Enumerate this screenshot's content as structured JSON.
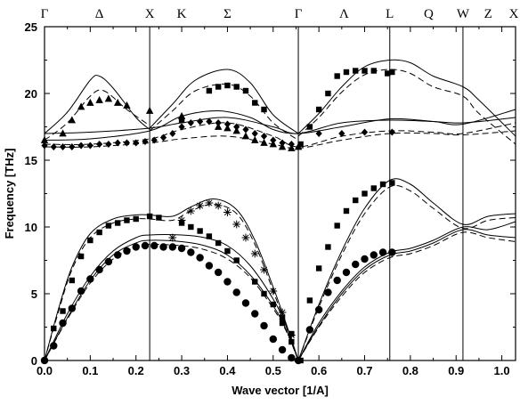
{
  "chart_data": {
    "type": "line",
    "title": "",
    "xlabel": "Wave vector [1/A]",
    "ylabel": "Frequency [THz]",
    "xlim": [
      0,
      1.03
    ],
    "ylim": [
      0,
      25
    ],
    "x_ticks": [
      0,
      0.1,
      0.2,
      0.3,
      0.4,
      0.5,
      0.6,
      0.7,
      0.8,
      0.9,
      1.0
    ],
    "x_tick_labels": [
      "0.0",
      "0.1",
      "0.2",
      "0.3",
      "0.4",
      "0.5",
      "0.6",
      "0.7",
      "0.8",
      "0.9",
      "1.0"
    ],
    "y_ticks": [
      0,
      5,
      10,
      15,
      20,
      25
    ],
    "y_tick_labels": [
      "0",
      "5",
      "10",
      "15",
      "20",
      "25"
    ],
    "grid": false,
    "symmetry_lines": [
      0.23,
      0.555,
      0.755,
      0.915
    ],
    "symmetry_labels": [
      {
        "x": 0.0,
        "label": "Γ"
      },
      {
        "x": 0.12,
        "label": "Δ"
      },
      {
        "x": 0.23,
        "label": "X"
      },
      {
        "x": 0.3,
        "label": "K"
      },
      {
        "x": 0.4,
        "label": "Σ"
      },
      {
        "x": 0.555,
        "label": "Γ"
      },
      {
        "x": 0.655,
        "label": "Λ"
      },
      {
        "x": 0.755,
        "label": "L"
      },
      {
        "x": 0.84,
        "label": "Q"
      },
      {
        "x": 0.915,
        "label": "W"
      },
      {
        "x": 0.97,
        "label": "Z"
      },
      {
        "x": 1.03,
        "label": "X"
      }
    ],
    "series": [
      {
        "style": "solid",
        "x": [
          0,
          0.05,
          0.1,
          0.12,
          0.15,
          0.2,
          0.23
        ],
        "y": [
          17,
          18.6,
          21,
          21.3,
          20.4,
          18.2,
          17.3
        ]
      },
      {
        "style": "dashed",
        "x": [
          0,
          0.05,
          0.1,
          0.13,
          0.18,
          0.23
        ],
        "y": [
          16.5,
          17.8,
          19.8,
          20.2,
          18.8,
          17.6
        ]
      },
      {
        "style": "solid",
        "x": [
          0,
          0.1,
          0.23,
          0.3,
          0.4,
          0.5,
          0.555,
          0.65,
          0.755,
          0.85,
          0.915,
          1.03
        ],
        "y": [
          17,
          17.1,
          17.4,
          17.8,
          18.2,
          17.5,
          17,
          17.8,
          18,
          17.9,
          17.8,
          18.2
        ]
      },
      {
        "style": "solid",
        "x": [
          0,
          0.1,
          0.23,
          0.3,
          0.38,
          0.45,
          0.5,
          0.555,
          0.65,
          0.755,
          0.85,
          0.915,
          1.03
        ],
        "y": [
          16.5,
          16.6,
          17.2,
          18.3,
          18.7,
          18.2,
          17.3,
          17,
          17.5,
          18.1,
          17.9,
          17.7,
          18.8
        ]
      },
      {
        "style": "dashed",
        "x": [
          0,
          0.1,
          0.23,
          0.3,
          0.4,
          0.5,
          0.555,
          0.65,
          0.755,
          0.85,
          0.915,
          1.03
        ],
        "y": [
          16.2,
          16.2,
          16.6,
          17.3,
          17.8,
          16.8,
          16,
          16.8,
          17.2,
          17.1,
          17,
          17.8
        ]
      },
      {
        "style": "dashed",
        "x": [
          0,
          0.1,
          0.23,
          0.3,
          0.4,
          0.5,
          0.555,
          0.65,
          0.755,
          0.85,
          0.915,
          1.03
        ],
        "y": [
          16,
          16,
          16.3,
          16.6,
          16.8,
          16.2,
          15.9,
          16.5,
          17,
          17,
          16.9,
          17.2
        ]
      },
      {
        "style": "solid",
        "x": [
          0.23,
          0.28,
          0.33,
          0.4,
          0.45,
          0.5,
          0.555
        ],
        "y": [
          17.4,
          19.2,
          21,
          21.8,
          20.8,
          18.4,
          17
        ]
      },
      {
        "style": "dashed",
        "x": [
          0.23,
          0.28,
          0.33,
          0.4,
          0.45,
          0.5,
          0.555
        ],
        "y": [
          17.2,
          18.7,
          20.2,
          20.7,
          19.8,
          17.8,
          16.5
        ]
      },
      {
        "style": "solid",
        "x": [
          0.555,
          0.6,
          0.65,
          0.7,
          0.755,
          0.8,
          0.85,
          0.915,
          0.95,
          1.03
        ],
        "y": [
          17,
          18.5,
          20.5,
          22,
          22.5,
          22.3,
          21.3,
          20.5,
          19.5,
          16.8
        ]
      },
      {
        "style": "dashed",
        "x": [
          0.555,
          0.6,
          0.65,
          0.7,
          0.755,
          0.8,
          0.85,
          0.915,
          0.95,
          1.03
        ],
        "y": [
          16.8,
          18.2,
          20.1,
          21.4,
          21.8,
          21.5,
          20.5,
          19.8,
          18.5,
          16.2
        ]
      },
      {
        "style": "solid",
        "x": [
          0,
          0.03,
          0.06,
          0.1,
          0.15,
          0.2,
          0.23,
          0.28,
          0.32,
          0.37,
          0.42,
          0.46,
          0.5,
          0.53,
          0.555
        ],
        "y": [
          0,
          3.8,
          7,
          9.5,
          10.6,
          10.9,
          10.9,
          10.8,
          11.5,
          12.1,
          11.3,
          9,
          5.5,
          2.6,
          0
        ]
      },
      {
        "style": "dashed",
        "x": [
          0,
          0.03,
          0.06,
          0.1,
          0.15,
          0.2,
          0.23,
          0.28,
          0.32,
          0.37,
          0.42,
          0.46,
          0.5,
          0.53,
          0.555
        ],
        "y": [
          0,
          3.6,
          6.8,
          9.2,
          10.3,
          10.6,
          10.6,
          10.5,
          11.2,
          11.7,
          11,
          8.7,
          5.2,
          2.4,
          0
        ]
      },
      {
        "style": "solid",
        "x": [
          0,
          0.05,
          0.1,
          0.15,
          0.2,
          0.23,
          0.3,
          0.35,
          0.4,
          0.45,
          0.5,
          0.53,
          0.555
        ],
        "y": [
          0,
          3.5,
          6.3,
          8.2,
          9.2,
          9.4,
          9.4,
          9.2,
          8.6,
          7.1,
          4.6,
          2.5,
          0
        ]
      },
      {
        "style": "solid",
        "x": [
          0,
          0.05,
          0.1,
          0.15,
          0.2,
          0.23,
          0.3,
          0.35,
          0.4,
          0.45,
          0.5,
          0.53,
          0.555
        ],
        "y": [
          0,
          3.2,
          6.0,
          7.9,
          8.8,
          9,
          8.9,
          8.6,
          7.9,
          6.4,
          4.1,
          2.2,
          0
        ]
      },
      {
        "style": "dashed",
        "x": [
          0,
          0.05,
          0.1,
          0.15,
          0.2,
          0.23,
          0.3,
          0.35,
          0.4,
          0.45,
          0.5,
          0.53,
          0.555
        ],
        "y": [
          0,
          3.1,
          5.8,
          7.6,
          8.5,
          8.7,
          8.6,
          8.3,
          7.6,
          6.2,
          3.9,
          2.1,
          0
        ]
      },
      {
        "style": "solid",
        "x": [
          0.555,
          0.6,
          0.65,
          0.7,
          0.755,
          0.8,
          0.85,
          0.915,
          0.97,
          1.03
        ],
        "y": [
          0,
          4.2,
          8.2,
          11.4,
          13.5,
          13.2,
          11.8,
          10.2,
          10.8,
          11
        ]
      },
      {
        "style": "dashed",
        "x": [
          0.555,
          0.6,
          0.65,
          0.7,
          0.755,
          0.8,
          0.85,
          0.915,
          0.97,
          1.03
        ],
        "y": [
          0,
          4,
          7.9,
          11,
          13,
          12.7,
          11.4,
          9.9,
          10.5,
          10.7
        ]
      },
      {
        "style": "solid",
        "x": [
          0.555,
          0.6,
          0.65,
          0.7,
          0.755,
          0.8,
          0.85,
          0.915,
          0.97,
          1.03
        ],
        "y": [
          0,
          2.8,
          5.2,
          7,
          8.1,
          8.4,
          9,
          10,
          9.8,
          10.4
        ]
      },
      {
        "style": "solid",
        "x": [
          0.555,
          0.6,
          0.65,
          0.7,
          0.755,
          0.8,
          0.85,
          0.915,
          0.97,
          1.03
        ],
        "y": [
          0,
          2.6,
          5,
          6.8,
          7.9,
          8.2,
          8.8,
          9.8,
          9.4,
          9.2
        ]
      },
      {
        "style": "dashed",
        "x": [
          0.555,
          0.6,
          0.65,
          0.7,
          0.755,
          0.8,
          0.85,
          0.915,
          0.97,
          1.03
        ],
        "y": [
          0,
          2.5,
          4.8,
          6.6,
          7.7,
          8,
          8.6,
          9.6,
          9.2,
          8.9
        ]
      }
    ],
    "points": {
      "square": {
        "x": [
          0.0,
          0.02,
          0.04,
          0.06,
          0.08,
          0.1,
          0.12,
          0.14,
          0.16,
          0.18,
          0.2,
          0.23,
          0.25,
          0.3,
          0.32,
          0.34,
          0.36,
          0.38,
          0.4,
          0.42,
          0.46,
          0.48,
          0.5,
          0.52,
          0.54,
          0.56,
          0.58,
          0.6,
          0.62,
          0.64,
          0.66,
          0.68,
          0.7,
          0.72,
          0.74,
          0.76,
          0.52,
          0.54,
          0.36,
          0.38,
          0.4,
          0.42,
          0.44,
          0.46,
          0.48,
          0.3,
          0.56,
          0.58,
          0.6,
          0.62,
          0.64,
          0.66,
          0.68,
          0.7,
          0.72,
          0.75,
          0.76
        ],
        "y": [
          0,
          2.4,
          3.7,
          6,
          7.8,
          9,
          9.6,
          10.1,
          10.3,
          10.5,
          10.6,
          10.8,
          10.7,
          10.3,
          10,
          9.7,
          9.3,
          8.8,
          8.2,
          7.5,
          5.9,
          5,
          4.2,
          3.2,
          2,
          0,
          4.5,
          6.9,
          8.5,
          10.1,
          11.2,
          12,
          12.5,
          12.9,
          13.2,
          13.3,
          2.8,
          1.4,
          20.2,
          20.5,
          20.6,
          20.5,
          20.2,
          19.3,
          18.8,
          18,
          16.2,
          17.5,
          18.8,
          20.0,
          21.3,
          21.6,
          21.7,
          21.7,
          21.7,
          21.5,
          21.6
        ]
      },
      "circle": {
        "x": [
          0.0,
          0.02,
          0.04,
          0.06,
          0.08,
          0.1,
          0.12,
          0.14,
          0.16,
          0.18,
          0.2,
          0.22,
          0.24,
          0.26,
          0.28,
          0.3,
          0.32,
          0.34,
          0.36,
          0.38,
          0.4,
          0.42,
          0.44,
          0.46,
          0.48,
          0.5,
          0.52,
          0.54,
          0.555,
          0.58,
          0.6,
          0.62,
          0.64,
          0.66,
          0.68,
          0.7,
          0.72,
          0.74,
          0.76
        ],
        "y": [
          0,
          1.1,
          2.8,
          3.9,
          5.2,
          6.1,
          6.8,
          7.4,
          7.9,
          8.2,
          8.5,
          8.6,
          8.6,
          8.5,
          8.5,
          8.4,
          8.1,
          7.7,
          7.1,
          6.6,
          5.9,
          5.1,
          4.3,
          3.5,
          2.6,
          1.6,
          0.8,
          0.2,
          0,
          2.3,
          3.8,
          5.1,
          6,
          6.6,
          7.2,
          7.6,
          7.9,
          8.1,
          8.1
        ]
      },
      "star": {
        "x": [
          0.28,
          0.3,
          0.32,
          0.34,
          0.36,
          0.38,
          0.4,
          0.42,
          0.44,
          0.46,
          0.48,
          0.5,
          0.52,
          0.54
        ],
        "y": [
          9.2,
          10.5,
          11.2,
          11.6,
          11.8,
          11.6,
          11.1,
          10.2,
          9.2,
          8,
          6.8,
          5.2,
          3.6,
          1.9
        ]
      },
      "triangle": {
        "x": [
          0.0,
          0.04,
          0.06,
          0.08,
          0.1,
          0.12,
          0.14,
          0.16,
          0.18,
          0.23,
          0.3,
          0.38,
          0.4,
          0.42,
          0.44,
          0.46,
          0.48,
          0.5,
          0.52,
          0.54,
          0.555
        ],
        "y": [
          16.5,
          17,
          18,
          19,
          19.3,
          19.5,
          19.6,
          19.3,
          19.1,
          18.7,
          18.3,
          17.5,
          17.4,
          17.2,
          16.8,
          16.5,
          16.3,
          16.2,
          16,
          15.9,
          16
        ]
      },
      "diamond": {
        "x": [
          0.0,
          0.02,
          0.04,
          0.06,
          0.08,
          0.1,
          0.12,
          0.14,
          0.16,
          0.18,
          0.2,
          0.22,
          0.24,
          0.26,
          0.28,
          0.3,
          0.32,
          0.34,
          0.36,
          0.38,
          0.4,
          0.42,
          0.44,
          0.46,
          0.48,
          0.5,
          0.52,
          0.54,
          0.6,
          0.65,
          0.7,
          0.76
        ],
        "y": [
          16.1,
          16,
          16,
          16,
          16.1,
          16.1,
          16.2,
          16.2,
          16.3,
          16.3,
          16.3,
          16.4,
          16.5,
          16.7,
          17,
          17.5,
          17.8,
          17.9,
          17.9,
          17.8,
          17.7,
          17.5,
          17.3,
          17,
          16.8,
          16.5,
          16.3,
          16.2,
          17,
          17,
          17.1,
          17.1
        ]
      }
    }
  }
}
